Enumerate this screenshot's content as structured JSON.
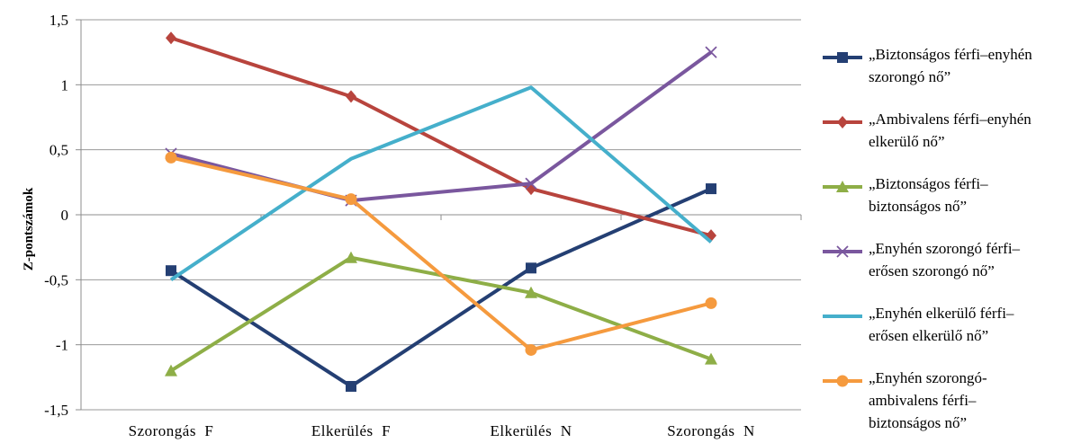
{
  "chart_data": {
    "type": "line",
    "ylabel": "Z-pontszámok",
    "xlabel": "",
    "ylim": [
      -1.5,
      1.5
    ],
    "ytick_values": [
      -1.5,
      -1,
      -0.5,
      0,
      0.5,
      1,
      1.5
    ],
    "ytick_labels": [
      "-1,5",
      "-1",
      "-0,5",
      "0",
      "0,5",
      "1",
      "1,5"
    ],
    "categories": [
      "Szorongás  F",
      "Elkerülés  F",
      "Elkerülés  N",
      "Szorongás  N"
    ],
    "grid": true,
    "legend_position": "right",
    "series": [
      {
        "name": "„Biztonságos férfi–enyhén\nszorongó nő”",
        "color": "#243F73",
        "marker": "square",
        "values": [
          -0.43,
          -1.32,
          -0.41,
          0.2
        ]
      },
      {
        "name": "„Ambivalens férfi–enyhén\nelkerülő nő”",
        "color": "#B8443D",
        "marker": "diamond",
        "values": [
          1.36,
          0.91,
          0.2,
          -0.16
        ]
      },
      {
        "name": "„Biztonságos férfi–\nbiztonságos nő”",
        "color": "#8EAE47",
        "marker": "triangle",
        "values": [
          -1.2,
          -0.33,
          -0.6,
          -1.11
        ]
      },
      {
        "name": "„Enyhén szorongó férfi–\nerősen szorongó nő”",
        "color": "#7A579E",
        "marker": "x",
        "values": [
          0.47,
          0.11,
          0.24,
          1.25
        ]
      },
      {
        "name": "„Enyhén elkerülő férfi–\nerősen elkerülő nő”",
        "color": "#45AFCB",
        "marker": "none",
        "values": [
          -0.5,
          0.43,
          0.98,
          -0.21
        ]
      },
      {
        "name": "„Enyhén szorongó-\nambivalens férfi–\nbiztonságos nő”",
        "color": "#F59A3E",
        "marker": "circle",
        "values": [
          0.44,
          0.12,
          -1.04,
          -0.68
        ]
      }
    ]
  }
}
